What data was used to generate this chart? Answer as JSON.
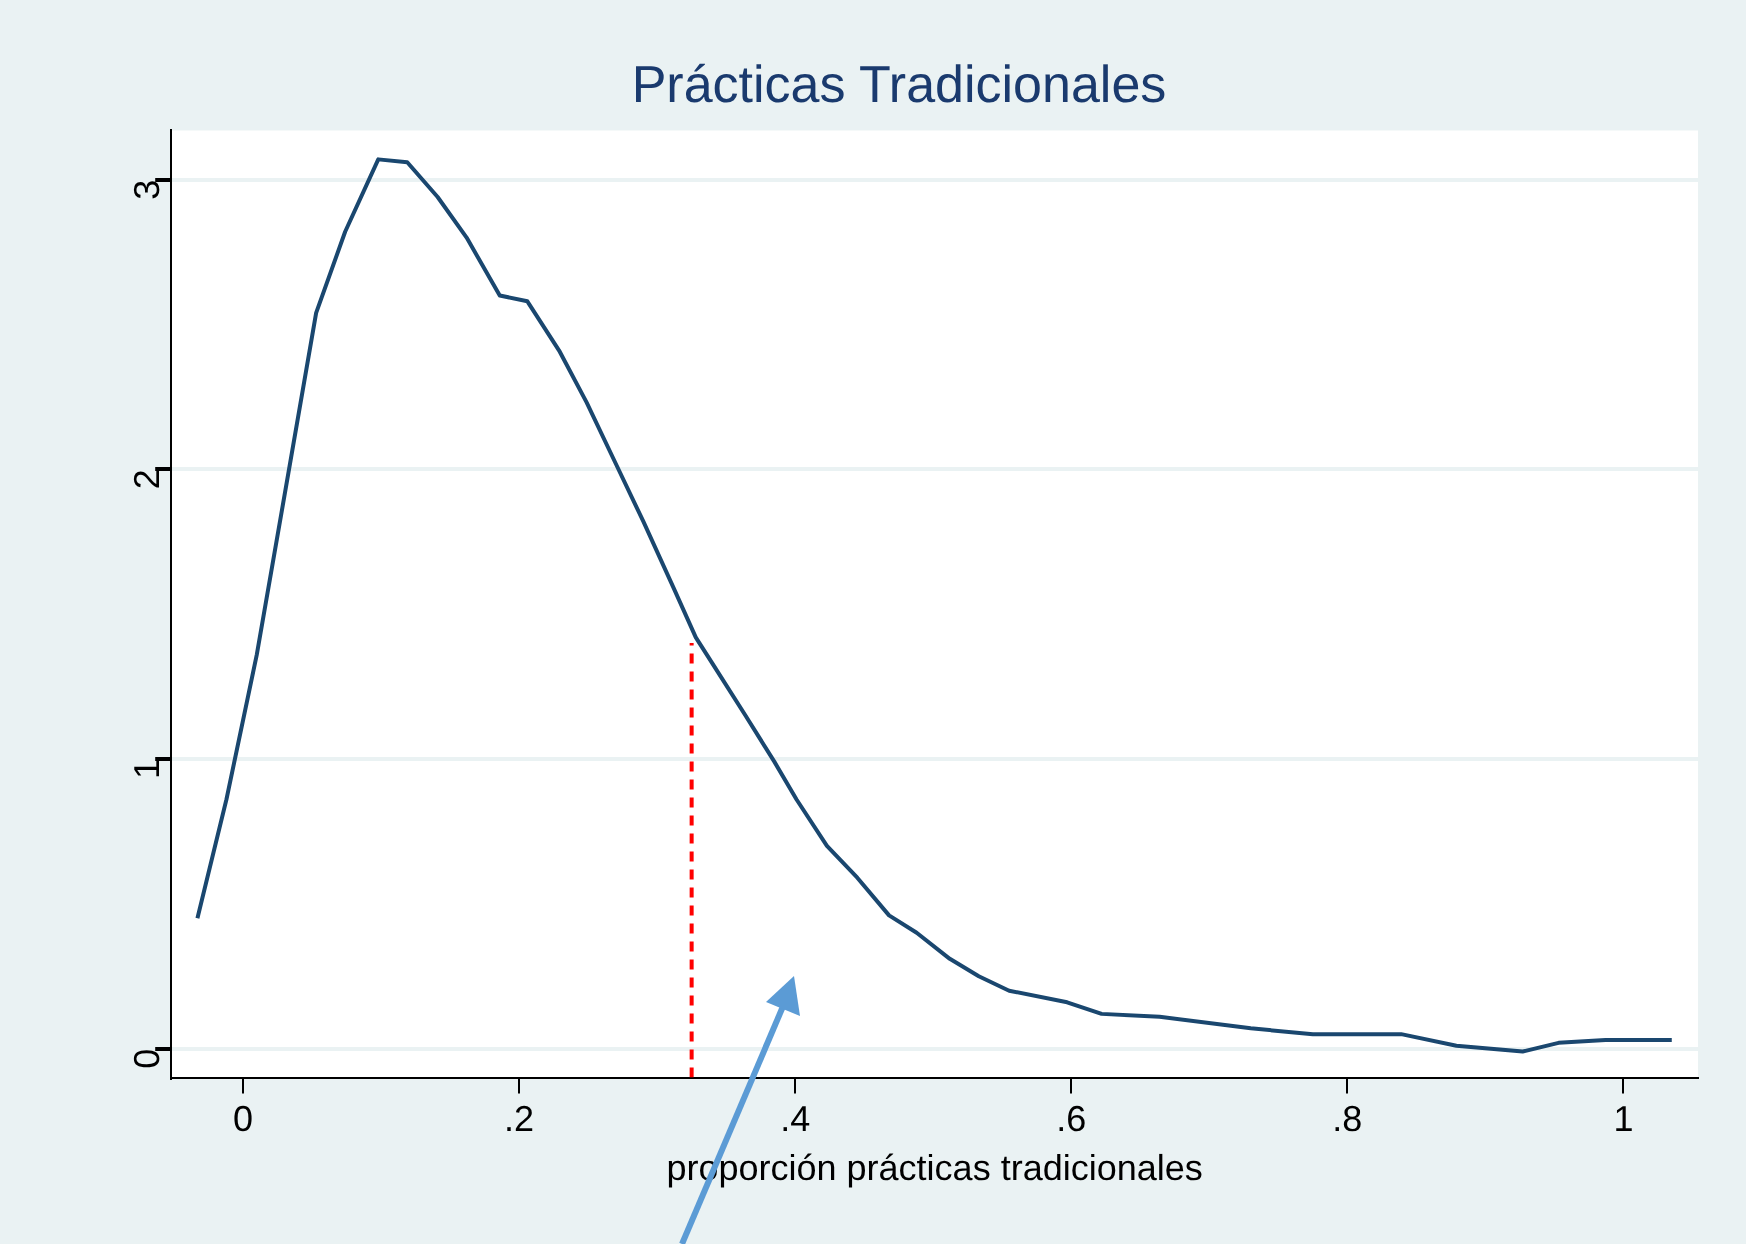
{
  "chart_data": {
    "type": "line",
    "title": "Prácticas Tradicionales",
    "xlabel": "proporción prácticas tradicionales",
    "xlim": [
      -0.052,
      1.054
    ],
    "ylim": [
      -0.1,
      3.17
    ],
    "xticks": [
      0,
      {
        "value": 0.2,
        "label": ".2"
      },
      {
        "value": 0.4,
        "label": ".4"
      },
      {
        "value": 0.6,
        "label": ".6"
      },
      {
        "value": 0.8,
        "label": ".8"
      },
      1
    ],
    "yticks": [
      0,
      1,
      2,
      3
    ],
    "grid": "y",
    "legend": false,
    "marker": "none",
    "series": [
      {
        "color": "#1a476f",
        "x": [
          -0.033,
          -0.012,
          0.01,
          0.033,
          0.053,
          0.074,
          0.098,
          0.119,
          0.141,
          0.162,
          0.186,
          0.206,
          0.229,
          0.249,
          0.27,
          0.29,
          0.312,
          0.328,
          0.34,
          0.364,
          0.385,
          0.401,
          0.423,
          0.445,
          0.468,
          0.488,
          0.512,
          0.533,
          0.555,
          0.597,
          0.622,
          0.664,
          0.73,
          0.775,
          0.82,
          0.839,
          0.879,
          0.927,
          0.953,
          0.987,
          1.035
        ],
        "values": [
          0.45,
          0.86,
          1.36,
          1.99,
          2.54,
          2.82,
          3.07,
          3.06,
          2.94,
          2.8,
          2.6,
          2.58,
          2.41,
          2.23,
          2.02,
          1.82,
          1.59,
          1.42,
          1.33,
          1.15,
          0.99,
          0.86,
          0.7,
          0.59,
          0.46,
          0.4,
          0.31,
          0.25,
          0.2,
          0.16,
          0.12,
          0.11,
          0.07,
          0.05,
          0.05,
          0.05,
          0.01,
          -0.01,
          0.02,
          0.03,
          0.03
        ]
      },
      {
        "color": "#ff0000",
        "line_style": "dashed",
        "x": [
          0.325,
          0.325
        ],
        "values": [
          -0.1,
          1.4
        ]
      }
    ]
  }
}
